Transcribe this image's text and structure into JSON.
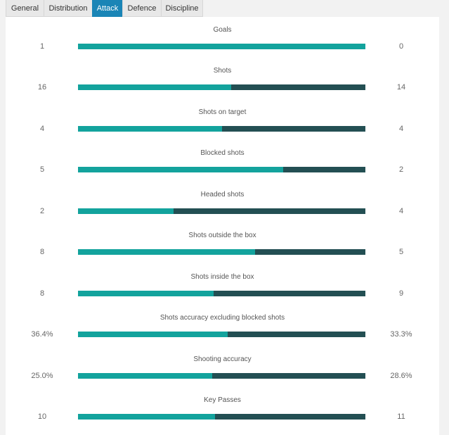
{
  "tabs": [
    "General",
    "Distribution",
    "Attack",
    "Defence",
    "Discipline"
  ],
  "active_tab": "Attack",
  "colors": {
    "home_bar": "#13a39d",
    "away_bar": "#234f53",
    "active_tab": "#1a85b6"
  },
  "stats": [
    {
      "label": "Goals",
      "home": "1",
      "away": "0",
      "home_share": 1.0
    },
    {
      "label": "Shots",
      "home": "16",
      "away": "14",
      "home_share": 0.533
    },
    {
      "label": "Shots on target",
      "home": "4",
      "away": "4",
      "home_share": 0.5
    },
    {
      "label": "Blocked shots",
      "home": "5",
      "away": "2",
      "home_share": 0.714
    },
    {
      "label": "Headed shots",
      "home": "2",
      "away": "4",
      "home_share": 0.333
    },
    {
      "label": "Shots outside the box",
      "home": "8",
      "away": "5",
      "home_share": 0.615
    },
    {
      "label": "Shots inside the box",
      "home": "8",
      "away": "9",
      "home_share": 0.471
    },
    {
      "label": "Shots accuracy excluding blocked shots",
      "home": "36.4%",
      "away": "33.3%",
      "home_share": 0.522
    },
    {
      "label": "Shooting accuracy",
      "home": "25.0%",
      "away": "28.6%",
      "home_share": 0.466
    },
    {
      "label": "Key Passes",
      "home": "10",
      "away": "11",
      "home_share": 0.476
    }
  ]
}
